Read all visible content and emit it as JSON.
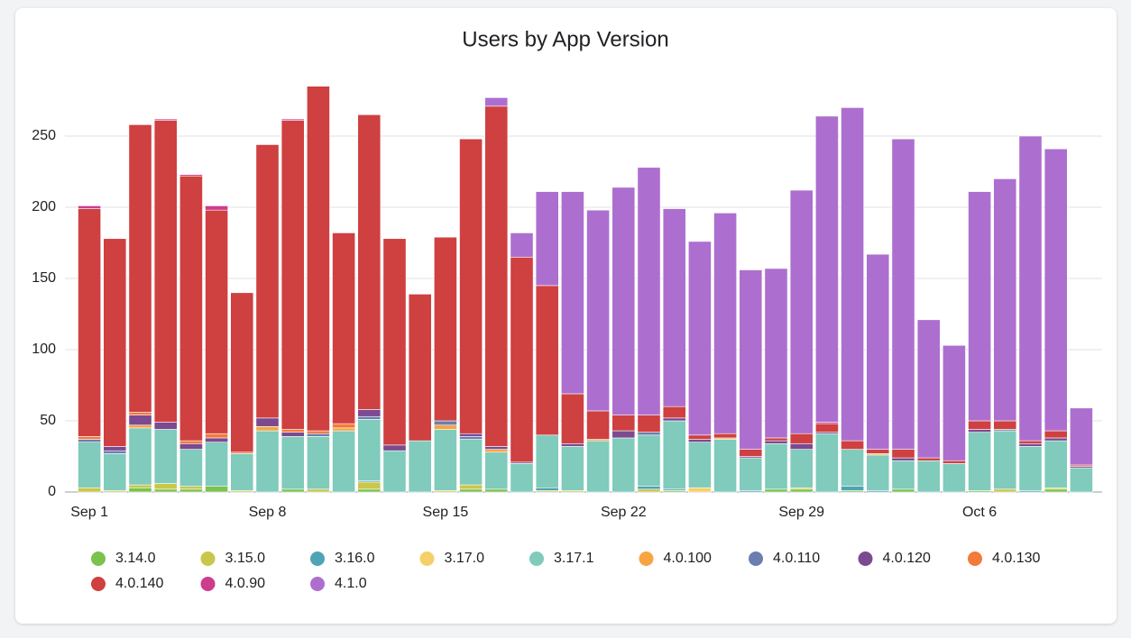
{
  "chart_data": {
    "type": "stacked-bar",
    "title": "Users by App Version",
    "categories": [
      "Sep 1",
      null,
      null,
      null,
      null,
      null,
      null,
      "Sep 8",
      null,
      null,
      null,
      null,
      null,
      null,
      "Sep 15",
      null,
      null,
      null,
      null,
      null,
      null,
      "Sep 22",
      null,
      null,
      null,
      null,
      null,
      null,
      "Sep 29",
      null,
      null,
      null,
      null,
      null,
      null,
      "Oct 6",
      null,
      null,
      null,
      null
    ],
    "ylim": [
      0,
      300
    ],
    "yticks": [
      0,
      50,
      100,
      150,
      200,
      250
    ],
    "grid": true,
    "series": [
      {
        "name": "3.14.0",
        "color": "#7cc24e",
        "values": [
          0,
          0,
          3,
          2,
          2,
          4,
          0,
          0,
          2,
          0,
          0,
          2,
          0,
          0,
          0,
          2,
          2,
          0,
          0,
          0,
          0,
          0,
          0,
          1,
          0,
          0,
          0,
          2,
          2,
          0,
          1,
          0,
          2,
          0,
          0,
          1,
          0,
          0,
          2,
          0
        ]
      },
      {
        "name": "3.15.0",
        "color": "#c9c74c",
        "values": [
          3,
          1,
          2,
          4,
          2,
          0,
          1,
          0,
          0,
          2,
          0,
          5,
          0,
          0,
          1,
          3,
          0,
          0,
          1,
          1,
          0,
          0,
          2,
          0,
          0,
          0,
          0,
          0,
          1,
          0,
          0,
          0,
          0,
          0,
          0,
          0,
          2,
          0,
          1,
          0
        ]
      },
      {
        "name": "3.16.0",
        "color": "#4fa3b5",
        "values": [
          0,
          0,
          0,
          0,
          0,
          0,
          0,
          0,
          0,
          0,
          0,
          1,
          0,
          0,
          0,
          0,
          0,
          0,
          2,
          0,
          0,
          0,
          2,
          1,
          0,
          0,
          1,
          0,
          0,
          0,
          3,
          1,
          0,
          0,
          0,
          0,
          0,
          1,
          0,
          0
        ]
      },
      {
        "name": "3.17.0",
        "color": "#f5cf6a",
        "values": [
          0,
          0,
          0,
          0,
          0,
          0,
          0,
          0,
          0,
          0,
          0,
          0,
          0,
          0,
          0,
          0,
          0,
          0,
          0,
          0,
          0,
          0,
          0,
          0,
          3,
          0,
          0,
          0,
          0,
          0,
          0,
          0,
          0,
          0,
          0,
          0,
          0,
          0,
          0,
          0
        ]
      },
      {
        "name": "3.17.1",
        "color": "#80cbbb",
        "values": [
          32,
          26,
          40,
          38,
          26,
          31,
          26,
          43,
          37,
          37,
          43,
          43,
          29,
          36,
          43,
          32,
          26,
          20,
          37,
          31,
          36,
          38,
          36,
          48,
          32,
          37,
          23,
          32,
          27,
          41,
          26,
          25,
          20,
          22,
          20,
          41,
          41,
          31,
          33,
          17
        ]
      },
      {
        "name": "4.0.100",
        "color": "#f7a540",
        "values": [
          0,
          0,
          2,
          0,
          0,
          0,
          0,
          3,
          0,
          0,
          2,
          0,
          0,
          0,
          3,
          0,
          2,
          0,
          0,
          0,
          1,
          0,
          0,
          0,
          0,
          1,
          0,
          0,
          0,
          0,
          0,
          1,
          0,
          0,
          0,
          0,
          0,
          0,
          0,
          0
        ]
      },
      {
        "name": "4.0.110",
        "color": "#6c7eb0",
        "values": [
          2,
          2,
          0,
          0,
          0,
          0,
          0,
          0,
          0,
          2,
          0,
          2,
          0,
          0,
          3,
          2,
          0,
          0,
          0,
          0,
          0,
          0,
          2,
          0,
          0,
          0,
          0,
          0,
          0,
          0,
          0,
          0,
          0,
          0,
          0,
          0,
          1,
          0,
          0,
          0
        ]
      },
      {
        "name": "4.0.120",
        "color": "#7b4a91",
        "values": [
          0,
          3,
          7,
          5,
          4,
          3,
          0,
          6,
          3,
          0,
          0,
          5,
          4,
          0,
          0,
          2,
          2,
          1,
          0,
          2,
          0,
          5,
          0,
          2,
          2,
          0,
          1,
          2,
          4,
          1,
          0,
          0,
          2,
          0,
          0,
          2,
          0,
          2,
          2,
          1
        ]
      },
      {
        "name": "4.0.130",
        "color": "#f47a3a",
        "values": [
          2,
          0,
          2,
          0,
          2,
          3,
          1,
          0,
          2,
          2,
          3,
          0,
          0,
          0,
          0,
          0,
          0,
          0,
          0,
          0,
          0,
          0,
          0,
          0,
          0,
          0,
          0,
          0,
          0,
          0,
          0,
          0,
          0,
          0,
          0,
          0,
          0,
          0,
          0,
          0
        ]
      },
      {
        "name": "4.0.140",
        "color": "#cf4040",
        "values": [
          160,
          146,
          202,
          212,
          186,
          157,
          112,
          192,
          217,
          242,
          134,
          207,
          145,
          103,
          129,
          207,
          239,
          144,
          105,
          35,
          20,
          11,
          12,
          8,
          3,
          3,
          5,
          2,
          7,
          6,
          6,
          3,
          6,
          2,
          2,
          6,
          6,
          2,
          5,
          1
        ]
      },
      {
        "name": "4.0.90",
        "color": "#cc3d8e",
        "values": [
          2,
          0,
          0,
          1,
          1,
          3,
          0,
          0,
          1,
          0,
          0,
          0,
          0,
          0,
          0,
          0,
          0,
          0,
          0,
          0,
          0,
          0,
          0,
          0,
          0,
          0,
          0,
          0,
          0,
          1,
          0,
          0,
          0,
          0,
          0,
          0,
          0,
          0,
          0,
          0
        ]
      },
      {
        "name": "4.1.0",
        "color": "#ad6fcf",
        "values": [
          0,
          0,
          0,
          0,
          0,
          0,
          0,
          0,
          0,
          0,
          0,
          0,
          0,
          0,
          0,
          0,
          6,
          17,
          66,
          142,
          141,
          160,
          174,
          139,
          136,
          155,
          126,
          119,
          171,
          215,
          234,
          137,
          218,
          97,
          81,
          161,
          170,
          214,
          198,
          40
        ]
      }
    ]
  }
}
